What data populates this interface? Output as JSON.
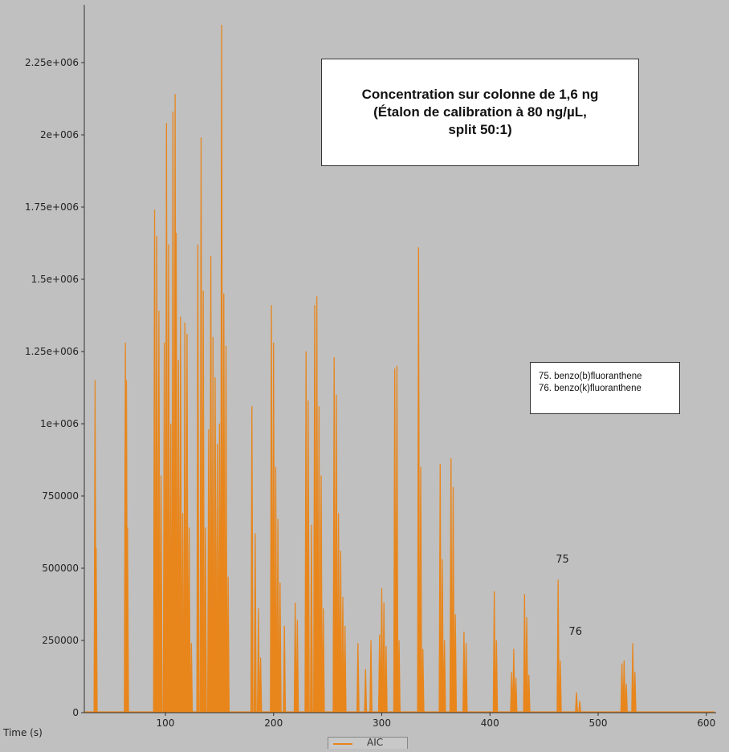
{
  "chart_data": {
    "type": "line",
    "title": "Concentration sur colonne de 1,6 ng (Étalon de calibration à 80 ng/µL, split 50:1)",
    "title_lines": [
      "Concentration sur colonne de 1,6 ng",
      "(Étalon de calibration à 80 ng/µL,",
      "split 50:1)"
    ],
    "xlabel": "Time (s)",
    "ylabel": "",
    "xlim": [
      25,
      605
    ],
    "ylim": [
      0,
      2400000
    ],
    "x_ticks": [
      100,
      200,
      300,
      400,
      500,
      600
    ],
    "x_tick_labels": [
      "100",
      "200",
      "300",
      "400",
      "500",
      "600"
    ],
    "y_ticks": [
      0,
      250000,
      500000,
      750000,
      1000000,
      1250000,
      1500000,
      1750000,
      2000000,
      2250000
    ],
    "y_tick_labels": [
      "0",
      "250000",
      "500000",
      "750000",
      "1e+006",
      "1.25e+006",
      "1.5e+006",
      "1.75e+006",
      "2e+006",
      "2.25e+006"
    ],
    "grid": false,
    "series": [
      {
        "name": "AIC",
        "color": "#e8861c",
        "peaks": [
          [
            35,
            1150000
          ],
          [
            36,
            570000
          ],
          [
            63,
            1280000
          ],
          [
            64,
            1150000
          ],
          [
            65,
            640000
          ],
          [
            90,
            1740000
          ],
          [
            92,
            1650000
          ],
          [
            94,
            1390000
          ],
          [
            96,
            820000
          ],
          [
            99,
            1280000
          ],
          [
            101,
            2040000
          ],
          [
            103,
            1620000
          ],
          [
            105,
            1000000
          ],
          [
            107,
            2080000
          ],
          [
            109,
            2140000
          ],
          [
            110,
            1660000
          ],
          [
            112,
            1220000
          ],
          [
            114,
            1370000
          ],
          [
            116,
            690000
          ],
          [
            118,
            1350000
          ],
          [
            120,
            1310000
          ],
          [
            122,
            640000
          ],
          [
            124,
            240000
          ],
          [
            130,
            1620000
          ],
          [
            133,
            1990000
          ],
          [
            135,
            1460000
          ],
          [
            137,
            640000
          ],
          [
            140,
            980000
          ],
          [
            142,
            1580000
          ],
          [
            144,
            1300000
          ],
          [
            146,
            1160000
          ],
          [
            148,
            930000
          ],
          [
            150,
            1000000
          ],
          [
            152,
            2380000
          ],
          [
            154,
            1450000
          ],
          [
            156,
            1270000
          ],
          [
            158,
            470000
          ],
          [
            180,
            1060000
          ],
          [
            183,
            620000
          ],
          [
            186,
            360000
          ],
          [
            188,
            190000
          ],
          [
            198,
            1410000
          ],
          [
            200,
            1280000
          ],
          [
            202,
            850000
          ],
          [
            204,
            670000
          ],
          [
            206,
            450000
          ],
          [
            210,
            300000
          ],
          [
            220,
            380000
          ],
          [
            222,
            320000
          ],
          [
            230,
            1250000
          ],
          [
            232,
            1080000
          ],
          [
            235,
            650000
          ],
          [
            238,
            1410000
          ],
          [
            240,
            1440000
          ],
          [
            242,
            1060000
          ],
          [
            244,
            820000
          ],
          [
            246,
            360000
          ],
          [
            256,
            1230000
          ],
          [
            258,
            1100000
          ],
          [
            260,
            690000
          ],
          [
            262,
            560000
          ],
          [
            264,
            400000
          ],
          [
            266,
            300000
          ],
          [
            278,
            240000
          ],
          [
            285,
            150000
          ],
          [
            290,
            250000
          ],
          [
            298,
            270000
          ],
          [
            300,
            430000
          ],
          [
            302,
            380000
          ],
          [
            304,
            230000
          ],
          [
            312,
            1190000
          ],
          [
            314,
            1200000
          ],
          [
            316,
            250000
          ],
          [
            334,
            1610000
          ],
          [
            336,
            850000
          ],
          [
            338,
            220000
          ],
          [
            354,
            860000
          ],
          [
            356,
            530000
          ],
          [
            358,
            250000
          ],
          [
            364,
            880000
          ],
          [
            366,
            780000
          ],
          [
            368,
            340000
          ],
          [
            376,
            280000
          ],
          [
            378,
            240000
          ],
          [
            404,
            420000
          ],
          [
            406,
            250000
          ],
          [
            420,
            140000
          ],
          [
            422,
            220000
          ],
          [
            424,
            120000
          ],
          [
            432,
            410000
          ],
          [
            434,
            330000
          ],
          [
            436,
            130000
          ],
          [
            463,
            460000
          ],
          [
            465,
            180000
          ],
          [
            480,
            70000
          ],
          [
            483,
            40000
          ],
          [
            522,
            170000
          ],
          [
            524,
            180000
          ],
          [
            526,
            100000
          ],
          [
            532,
            240000
          ],
          [
            534,
            140000
          ]
        ]
      }
    ],
    "annotations": [
      {
        "text": "75",
        "x": 467,
        "y": 520000
      },
      {
        "text": "76",
        "x": 479,
        "y": 270000
      }
    ],
    "legend_entries": [
      "75. benzo(b)fluoranthene",
      "76. benzo(k)fluoranthene"
    ]
  },
  "series_label": "AIC"
}
